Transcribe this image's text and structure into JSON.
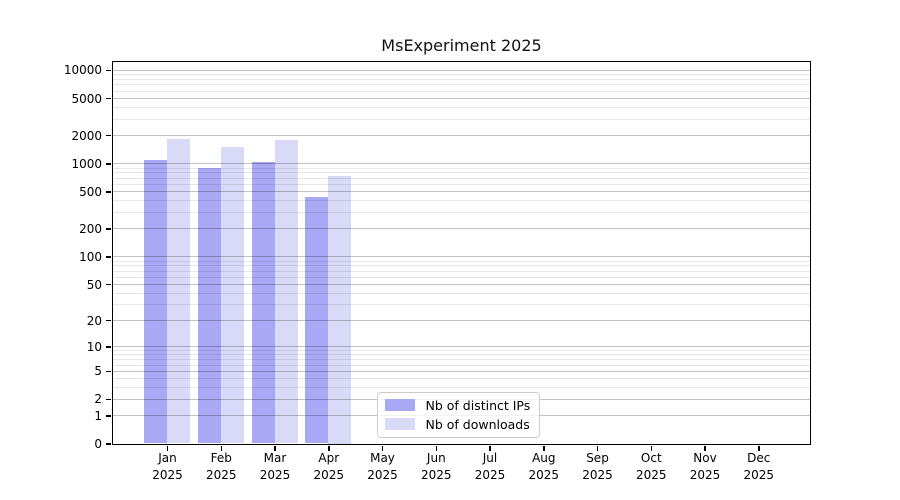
{
  "title": "MsExperiment 2025",
  "chart_data": {
    "type": "bar",
    "title": "MsExperiment 2025",
    "categories": [
      {
        "month": "Jan",
        "year": "2025"
      },
      {
        "month": "Feb",
        "year": "2025"
      },
      {
        "month": "Mar",
        "year": "2025"
      },
      {
        "month": "Apr",
        "year": "2025"
      },
      {
        "month": "May",
        "year": "2025"
      },
      {
        "month": "Jun",
        "year": "2025"
      },
      {
        "month": "Jul",
        "year": "2025"
      },
      {
        "month": "Aug",
        "year": "2025"
      },
      {
        "month": "Sep",
        "year": "2025"
      },
      {
        "month": "Oct",
        "year": "2025"
      },
      {
        "month": "Nov",
        "year": "2025"
      },
      {
        "month": "Dec",
        "year": "2025"
      }
    ],
    "series": [
      {
        "name": "Nb of distinct IPs",
        "color": "#a8a8f5",
        "values": [
          1080,
          885,
          1040,
          430,
          null,
          null,
          null,
          null,
          null,
          null,
          null,
          null
        ]
      },
      {
        "name": "Nb of downloads",
        "color": "#d9d9f8",
        "values": [
          1830,
          1510,
          1780,
          730,
          null,
          null,
          null,
          null,
          null,
          null,
          null,
          null
        ]
      }
    ],
    "y_ticks": [
      0,
      1,
      2,
      5,
      10,
      20,
      50,
      100,
      200,
      500,
      1000,
      2000,
      5000,
      10000
    ],
    "y_minor_gridlines": [
      3,
      4,
      6,
      7,
      8,
      9,
      30,
      40,
      60,
      70,
      80,
      90,
      300,
      400,
      600,
      700,
      800,
      900,
      3000,
      4000,
      6000,
      7000,
      8000,
      9000
    ],
    "y_scale": "log10(value+1)",
    "ylim": [
      0,
      12300
    ],
    "xlabel": "",
    "ylabel": "",
    "grid": "horizontal major+minor",
    "legend_position": "lower center inside plot",
    "colors": {
      "plot_border": "#000000",
      "grid_major": "#c6c6c6",
      "grid_minor": "#eaeaea",
      "background": "#ffffff"
    }
  }
}
